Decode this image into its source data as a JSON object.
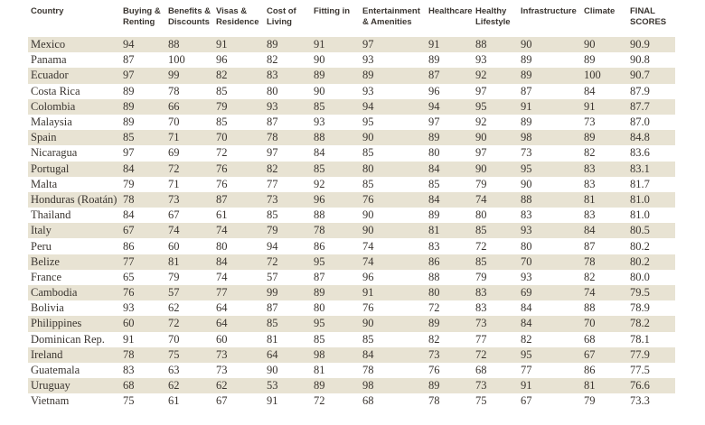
{
  "headers": [
    "Country",
    "Buying & Renting",
    "Benefits & Discounts",
    "Visas & Residence",
    "Cost of Living",
    "Fitting in",
    "Entertainment & Amenities",
    "Healthcare",
    "Healthy Lifestyle",
    "Infrastructure",
    "Climate",
    "FINAL SCORES"
  ],
  "rows": [
    [
      "Mexico",
      "94",
      "88",
      "91",
      "89",
      "91",
      "97",
      "91",
      "88",
      "90",
      "90",
      "90.9"
    ],
    [
      "Panama",
      "87",
      "100",
      "96",
      "82",
      "90",
      "93",
      "89",
      "93",
      "89",
      "89",
      "90.8"
    ],
    [
      "Ecuador",
      "97",
      "99",
      "82",
      "83",
      "89",
      "89",
      "87",
      "92",
      "89",
      "100",
      "90.7"
    ],
    [
      "Costa Rica",
      "89",
      "78",
      "85",
      "80",
      "90",
      "93",
      "96",
      "97",
      "87",
      "84",
      "87.9"
    ],
    [
      "Colombia",
      "89",
      "66",
      "79",
      "93",
      "85",
      "94",
      "94",
      "95",
      "91",
      "91",
      "87.7"
    ],
    [
      "Malaysia",
      "89",
      "70",
      "85",
      "87",
      "93",
      "95",
      "97",
      "92",
      "89",
      "73",
      "87.0"
    ],
    [
      "Spain",
      "85",
      "71",
      "70",
      "78",
      "88",
      "90",
      "89",
      "90",
      "98",
      "89",
      "84.8"
    ],
    [
      "Nicaragua",
      "97",
      "69",
      "72",
      "97",
      "84",
      "85",
      "80",
      "97",
      "73",
      "82",
      "83.6"
    ],
    [
      "Portugal",
      "84",
      "72",
      "76",
      "82",
      "85",
      "80",
      "84",
      "90",
      "95",
      "83",
      "83.1"
    ],
    [
      "Malta",
      "79",
      "71",
      "76",
      "77",
      "92",
      "85",
      "85",
      "79",
      "90",
      "83",
      "81.7"
    ],
    [
      "Honduras (Roatán)",
      "78",
      "73",
      "87",
      "73",
      "96",
      "76",
      "84",
      "74",
      "88",
      "81",
      "81.0"
    ],
    [
      "Thailand",
      "84",
      "67",
      "61",
      "85",
      "88",
      "90",
      "89",
      "80",
      "83",
      "83",
      "81.0"
    ],
    [
      "Italy",
      "67",
      "74",
      "74",
      "79",
      "78",
      "90",
      "81",
      "85",
      "93",
      "84",
      "80.5"
    ],
    [
      "Peru",
      "86",
      "60",
      "80",
      "94",
      "86",
      "74",
      "83",
      "72",
      "80",
      "87",
      "80.2"
    ],
    [
      "Belize",
      "77",
      "81",
      "84",
      "72",
      "95",
      "74",
      "86",
      "85",
      "70",
      "78",
      "80.2"
    ],
    [
      "France",
      "65",
      "79",
      "74",
      "57",
      "87",
      "96",
      "88",
      "79",
      "93",
      "82",
      "80.0"
    ],
    [
      "Cambodia",
      "76",
      "57",
      "77",
      "99",
      "89",
      "91",
      "80",
      "83",
      "69",
      "74",
      "79.5"
    ],
    [
      "Bolivia",
      "93",
      "62",
      "64",
      "87",
      "80",
      "76",
      "72",
      "83",
      "84",
      "88",
      "78.9"
    ],
    [
      "Philippines",
      "60",
      "72",
      "64",
      "85",
      "95",
      "90",
      "89",
      "73",
      "84",
      "70",
      "78.2"
    ],
    [
      "Dominican Rep.",
      "91",
      "70",
      "60",
      "81",
      "85",
      "85",
      "82",
      "77",
      "82",
      "68",
      "78.1"
    ],
    [
      "Ireland",
      "78",
      "75",
      "73",
      "64",
      "98",
      "84",
      "73",
      "72",
      "95",
      "67",
      "77.9"
    ],
    [
      "Guatemala",
      "83",
      "63",
      "73",
      "90",
      "81",
      "78",
      "76",
      "68",
      "77",
      "86",
      "77.5"
    ],
    [
      "Uruguay",
      "68",
      "62",
      "62",
      "53",
      "89",
      "98",
      "89",
      "73",
      "91",
      "81",
      "76.6"
    ],
    [
      "Vietnam",
      "75",
      "61",
      "67",
      "91",
      "72",
      "68",
      "78",
      "75",
      "67",
      "79",
      "73.3"
    ]
  ]
}
